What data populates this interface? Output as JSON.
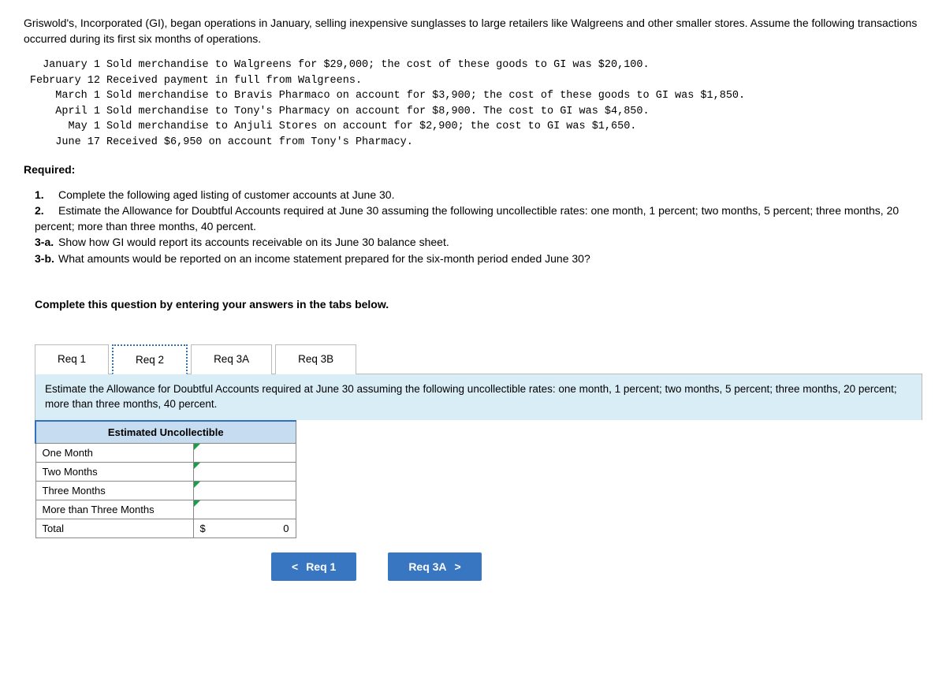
{
  "intro": "Griswold's, Incorporated (GI), began operations in January, selling inexpensive sunglasses to large retailers like Walgreens and other smaller stores. Assume the following transactions occurred during its first six months of operations.",
  "transactions": [
    {
      "date": "January 1",
      "text": "Sold merchandise to Walgreens for $29,000; the cost of these goods to GI was $20,100."
    },
    {
      "date": "February 12",
      "text": "Received payment in full from Walgreens."
    },
    {
      "date": "March 1",
      "text": "Sold merchandise to Bravis Pharmaco on account for $3,900; the cost of these goods to GI was $1,850."
    },
    {
      "date": "April 1",
      "text": "Sold merchandise to Tony's Pharmacy on account for $8,900. The cost to GI was $4,850."
    },
    {
      "date": "May 1",
      "text": "Sold merchandise to Anjuli Stores on account for $2,900; the cost to GI was $1,650."
    },
    {
      "date": "June 17",
      "text": "Received $6,950 on account from Tony's Pharmacy."
    }
  ],
  "required_label": "Required:",
  "requirements": [
    {
      "num": "1.",
      "text": "Complete the following aged listing of customer accounts at June 30."
    },
    {
      "num": "2.",
      "text": "Estimate the Allowance for Doubtful Accounts required at June 30 assuming the following uncollectible rates: one month, 1 percent; two months, 5 percent; three months, 20 percent; more than three months, 40 percent."
    },
    {
      "num": "3-a.",
      "text": "Show how GI would report its accounts receivable on its June 30 balance sheet."
    },
    {
      "num": "3-b.",
      "text": "What amounts would be reported on an income statement prepared for the six-month period ended June 30?"
    }
  ],
  "instruction": "Complete this question by entering your answers in the tabs below.",
  "tabs": {
    "items": [
      {
        "label": "Req 1",
        "active": false
      },
      {
        "label": "Req 2",
        "active": true
      },
      {
        "label": "Req 3A",
        "active": false
      },
      {
        "label": "Req 3B",
        "active": false
      }
    ],
    "description": "Estimate the Allowance for Doubtful Accounts required at June 30 assuming the following uncollectible rates: one month, 1 percent; two months, 5 percent; three months, 20 percent; more than three months, 40 percent."
  },
  "table": {
    "header": "Estimated Uncollectible",
    "rows": [
      "One Month",
      "Two Months",
      "Three Months",
      "More than Three Months"
    ],
    "total_label": "Total",
    "total_symbol": "$",
    "total_value": "0",
    "colors": {
      "header_bg": "#c6dcf1",
      "border_accent": "#3470b8",
      "flag": "#1b9e4b"
    }
  },
  "nav": {
    "prev_label": "Req 1",
    "next_label": "Req 3A",
    "prev_chev": "<",
    "next_chev": ">",
    "btn_bg": "#3876c2"
  }
}
